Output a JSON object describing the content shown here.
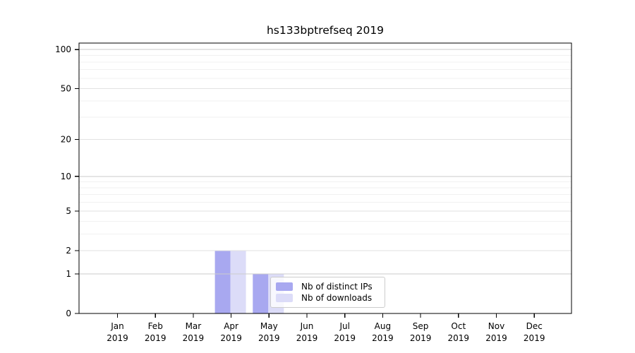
{
  "title": "hs133bptrefseq 2019",
  "chart_data": {
    "type": "bar",
    "title": "hs133bptrefseq 2019",
    "categories": [
      "Jan 2019",
      "Feb 2019",
      "Mar 2019",
      "Apr 2019",
      "May 2019",
      "Jun 2019",
      "Jul 2019",
      "Aug 2019",
      "Sep 2019",
      "Oct 2019",
      "Nov 2019",
      "Dec 2019"
    ],
    "month_labels": [
      "Jan",
      "Feb",
      "Mar",
      "Apr",
      "May",
      "Jun",
      "Jul",
      "Aug",
      "Sep",
      "Oct",
      "Nov",
      "Dec"
    ],
    "year_label": "2019",
    "series": [
      {
        "name": "Nb of distinct IPs",
        "color": "#a8a8f0",
        "values": [
          0,
          0,
          0,
          2,
          1,
          0,
          0,
          0,
          0,
          0,
          0,
          0
        ]
      },
      {
        "name": "Nb of downloads",
        "color": "#dcdcf8",
        "values": [
          0,
          0,
          0,
          2,
          1,
          0,
          0,
          0,
          0,
          0,
          0,
          0
        ]
      }
    ],
    "xlabel": "",
    "ylabel": "",
    "yscale": "log1p",
    "ylim": [
      0,
      112
    ],
    "yticks": [
      0,
      1,
      2,
      5,
      10,
      20,
      50,
      100
    ],
    "grid": {
      "orientation": "horizontal",
      "major_lines": [
        1,
        10,
        100
      ],
      "mid_lines": [
        2,
        5,
        20,
        50
      ],
      "minor_lines": [
        3,
        4,
        6,
        7,
        8,
        9,
        30,
        40,
        60,
        70,
        80,
        90
      ]
    },
    "legend_position": "lower center-right inside plot"
  },
  "legend": {
    "items": [
      {
        "label": "Nb of distinct IPs",
        "color": "#a8a8f0"
      },
      {
        "label": "Nb of downloads",
        "color": "#dcdcf8"
      }
    ]
  },
  "colors": {
    "bar_distinct_ips": "#a8a8f0",
    "bar_downloads": "#dcdcf8",
    "grid_major": "#cbcbcb",
    "grid_mid": "#e2e2e2",
    "grid_minor": "#f1f1f1",
    "axis": "#000000",
    "legend_border": "#cccccc",
    "text": "#000000"
  }
}
